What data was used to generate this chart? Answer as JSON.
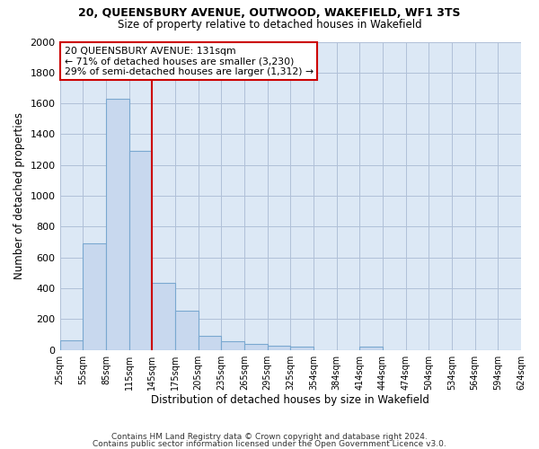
{
  "title1": "20, QUEENSBURY AVENUE, OUTWOOD, WAKEFIELD, WF1 3TS",
  "title2": "Size of property relative to detached houses in Wakefield",
  "xlabel": "Distribution of detached houses by size in Wakefield",
  "ylabel": "Number of detached properties",
  "bar_values": [
    65,
    690,
    1630,
    1290,
    435,
    255,
    90,
    55,
    40,
    30,
    20,
    0,
    0,
    20,
    0,
    0,
    0,
    0,
    0,
    0
  ],
  "categories": [
    "25sqm",
    "55sqm",
    "85sqm",
    "115sqm",
    "145sqm",
    "175sqm",
    "205sqm",
    "235sqm",
    "265sqm",
    "295sqm",
    "325sqm",
    "354sqm",
    "384sqm",
    "414sqm",
    "444sqm",
    "474sqm",
    "504sqm",
    "534sqm",
    "564sqm",
    "594sqm",
    "624sqm"
  ],
  "bar_color": "#c8d8ee",
  "bar_edge_color": "#7aa8d0",
  "vline_x": 4,
  "vline_color": "#cc0000",
  "ylim": [
    0,
    2000
  ],
  "yticks": [
    0,
    200,
    400,
    600,
    800,
    1000,
    1200,
    1400,
    1600,
    1800,
    2000
  ],
  "annotation_title": "20 QUEENSBURY AVENUE: 131sqm",
  "annotation_line1": "← 71% of detached houses are smaller (3,230)",
  "annotation_line2": "29% of semi-detached houses are larger (1,312) →",
  "annotation_box_color": "#cc0000",
  "footer1": "Contains HM Land Registry data © Crown copyright and database right 2024.",
  "footer2": "Contains public sector information licensed under the Open Government Licence v3.0.",
  "background_color": "#ffffff",
  "plot_bg_color": "#dce8f5",
  "grid_color": "#b0c0d8"
}
